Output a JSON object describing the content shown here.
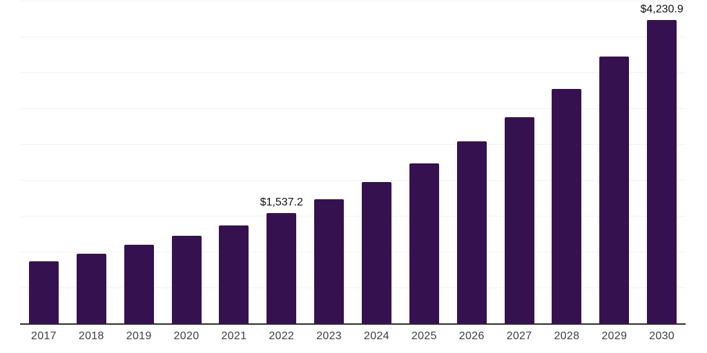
{
  "chart_data": {
    "type": "bar",
    "title": "",
    "xlabel": "",
    "ylabel": "",
    "categories": [
      "2017",
      "2018",
      "2019",
      "2020",
      "2021",
      "2022",
      "2023",
      "2024",
      "2025",
      "2026",
      "2027",
      "2028",
      "2029",
      "2030"
    ],
    "values": [
      865,
      970,
      1100,
      1220,
      1365,
      1537.2,
      1735,
      1970,
      2235,
      2535,
      2875,
      3270,
      3720,
      4230.9
    ],
    "labeled_points": [
      {
        "category": "2022",
        "label": "$1,537.2"
      },
      {
        "category": "2030",
        "label": "$4,230.9"
      }
    ],
    "ylim": [
      0,
      4500
    ],
    "gridline_step": 500,
    "grid": "horizontal",
    "legend_position": "none",
    "colors": {
      "bar": "#361150",
      "axis_line": "#2b2b2b",
      "gridline": "#f2f2f2",
      "tick_label": "#3d3d3d",
      "data_label": "#111111",
      "background": "#ffffff"
    }
  }
}
